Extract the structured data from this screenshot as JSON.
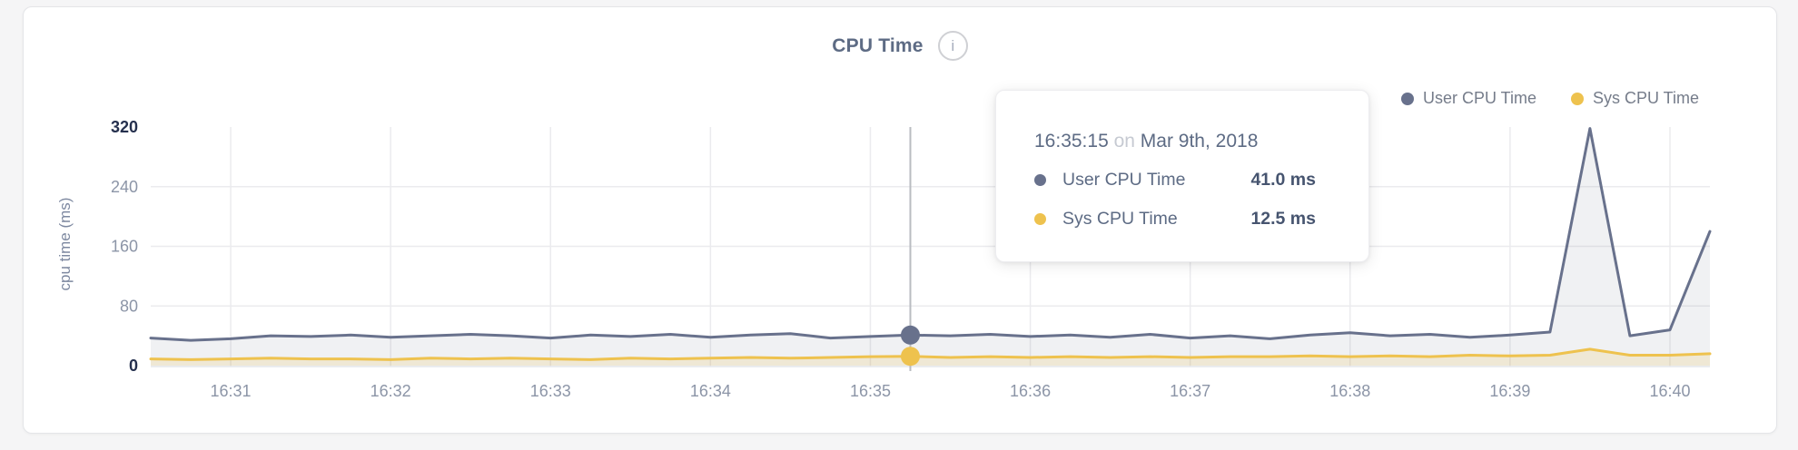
{
  "header": {
    "title": "CPU Time",
    "info_glyph": "i"
  },
  "tooltip": {
    "time": "16:35:15",
    "on_word": "on",
    "date": "Mar 9th, 2018",
    "rows": [
      {
        "label": "User CPU Time",
        "value": "41.0 ms"
      },
      {
        "label": "Sys CPU Time",
        "value": "12.5 ms"
      }
    ]
  },
  "chart_data": {
    "type": "area",
    "title": "CPU Time",
    "xlabel": "",
    "ylabel": "cpu time (ms)",
    "ylim": [
      0,
      320
    ],
    "y_ticks": [
      0,
      80,
      160,
      240,
      320
    ],
    "x_tick_labels": [
      "16:31",
      "16:32",
      "16:33",
      "16:34",
      "16:35",
      "16:36",
      "16:37",
      "16:38",
      "16:39",
      "16:40"
    ],
    "grid": true,
    "legend_position": "top-right",
    "x": [
      "16:30:30",
      "16:30:45",
      "16:31:00",
      "16:31:15",
      "16:31:30",
      "16:31:45",
      "16:32:00",
      "16:32:15",
      "16:32:30",
      "16:32:45",
      "16:33:00",
      "16:33:15",
      "16:33:30",
      "16:33:45",
      "16:34:00",
      "16:34:15",
      "16:34:30",
      "16:34:45",
      "16:35:00",
      "16:35:15",
      "16:35:30",
      "16:35:45",
      "16:36:00",
      "16:36:15",
      "16:36:30",
      "16:36:45",
      "16:37:00",
      "16:37:15",
      "16:37:30",
      "16:37:45",
      "16:38:00",
      "16:38:15",
      "16:38:30",
      "16:38:45",
      "16:39:00",
      "16:39:15",
      "16:39:30",
      "16:39:45",
      "16:40:00",
      "16:40:15"
    ],
    "series": [
      {
        "name": "User CPU Time",
        "color": "#68718c",
        "fill": "rgba(104,113,140,0.10)",
        "values": [
          37,
          34,
          36,
          40,
          39,
          41,
          38,
          40,
          42,
          40,
          37,
          41,
          39,
          42,
          38,
          41,
          43,
          37,
          39,
          41,
          40,
          42,
          39,
          41,
          38,
          42,
          37,
          40,
          36,
          41,
          44,
          40,
          42,
          38,
          41,
          45,
          318,
          40,
          48,
          180
        ]
      },
      {
        "name": "Sys CPU Time",
        "color": "#eec24e",
        "fill": "rgba(238,194,78,0.18)",
        "values": [
          9,
          8,
          9,
          10,
          9,
          9,
          8,
          10,
          9,
          10,
          9,
          8,
          10,
          9,
          10,
          11,
          10,
          11,
          12,
          12.5,
          11,
          12,
          11,
          12,
          11,
          12,
          11,
          12,
          12,
          13,
          12,
          13,
          12,
          14,
          13,
          14,
          22,
          14,
          14,
          16
        ]
      }
    ],
    "highlight": {
      "index": 19,
      "time": "16:35:15",
      "user_value": 41.0,
      "sys_value": 12.5
    },
    "colors": {
      "grid": "#ebebee",
      "baseline": "#e4e5e8",
      "tick": "#8c95a7",
      "tick_dark": "#25304e",
      "highlight_line": "#b9bcc1"
    }
  }
}
